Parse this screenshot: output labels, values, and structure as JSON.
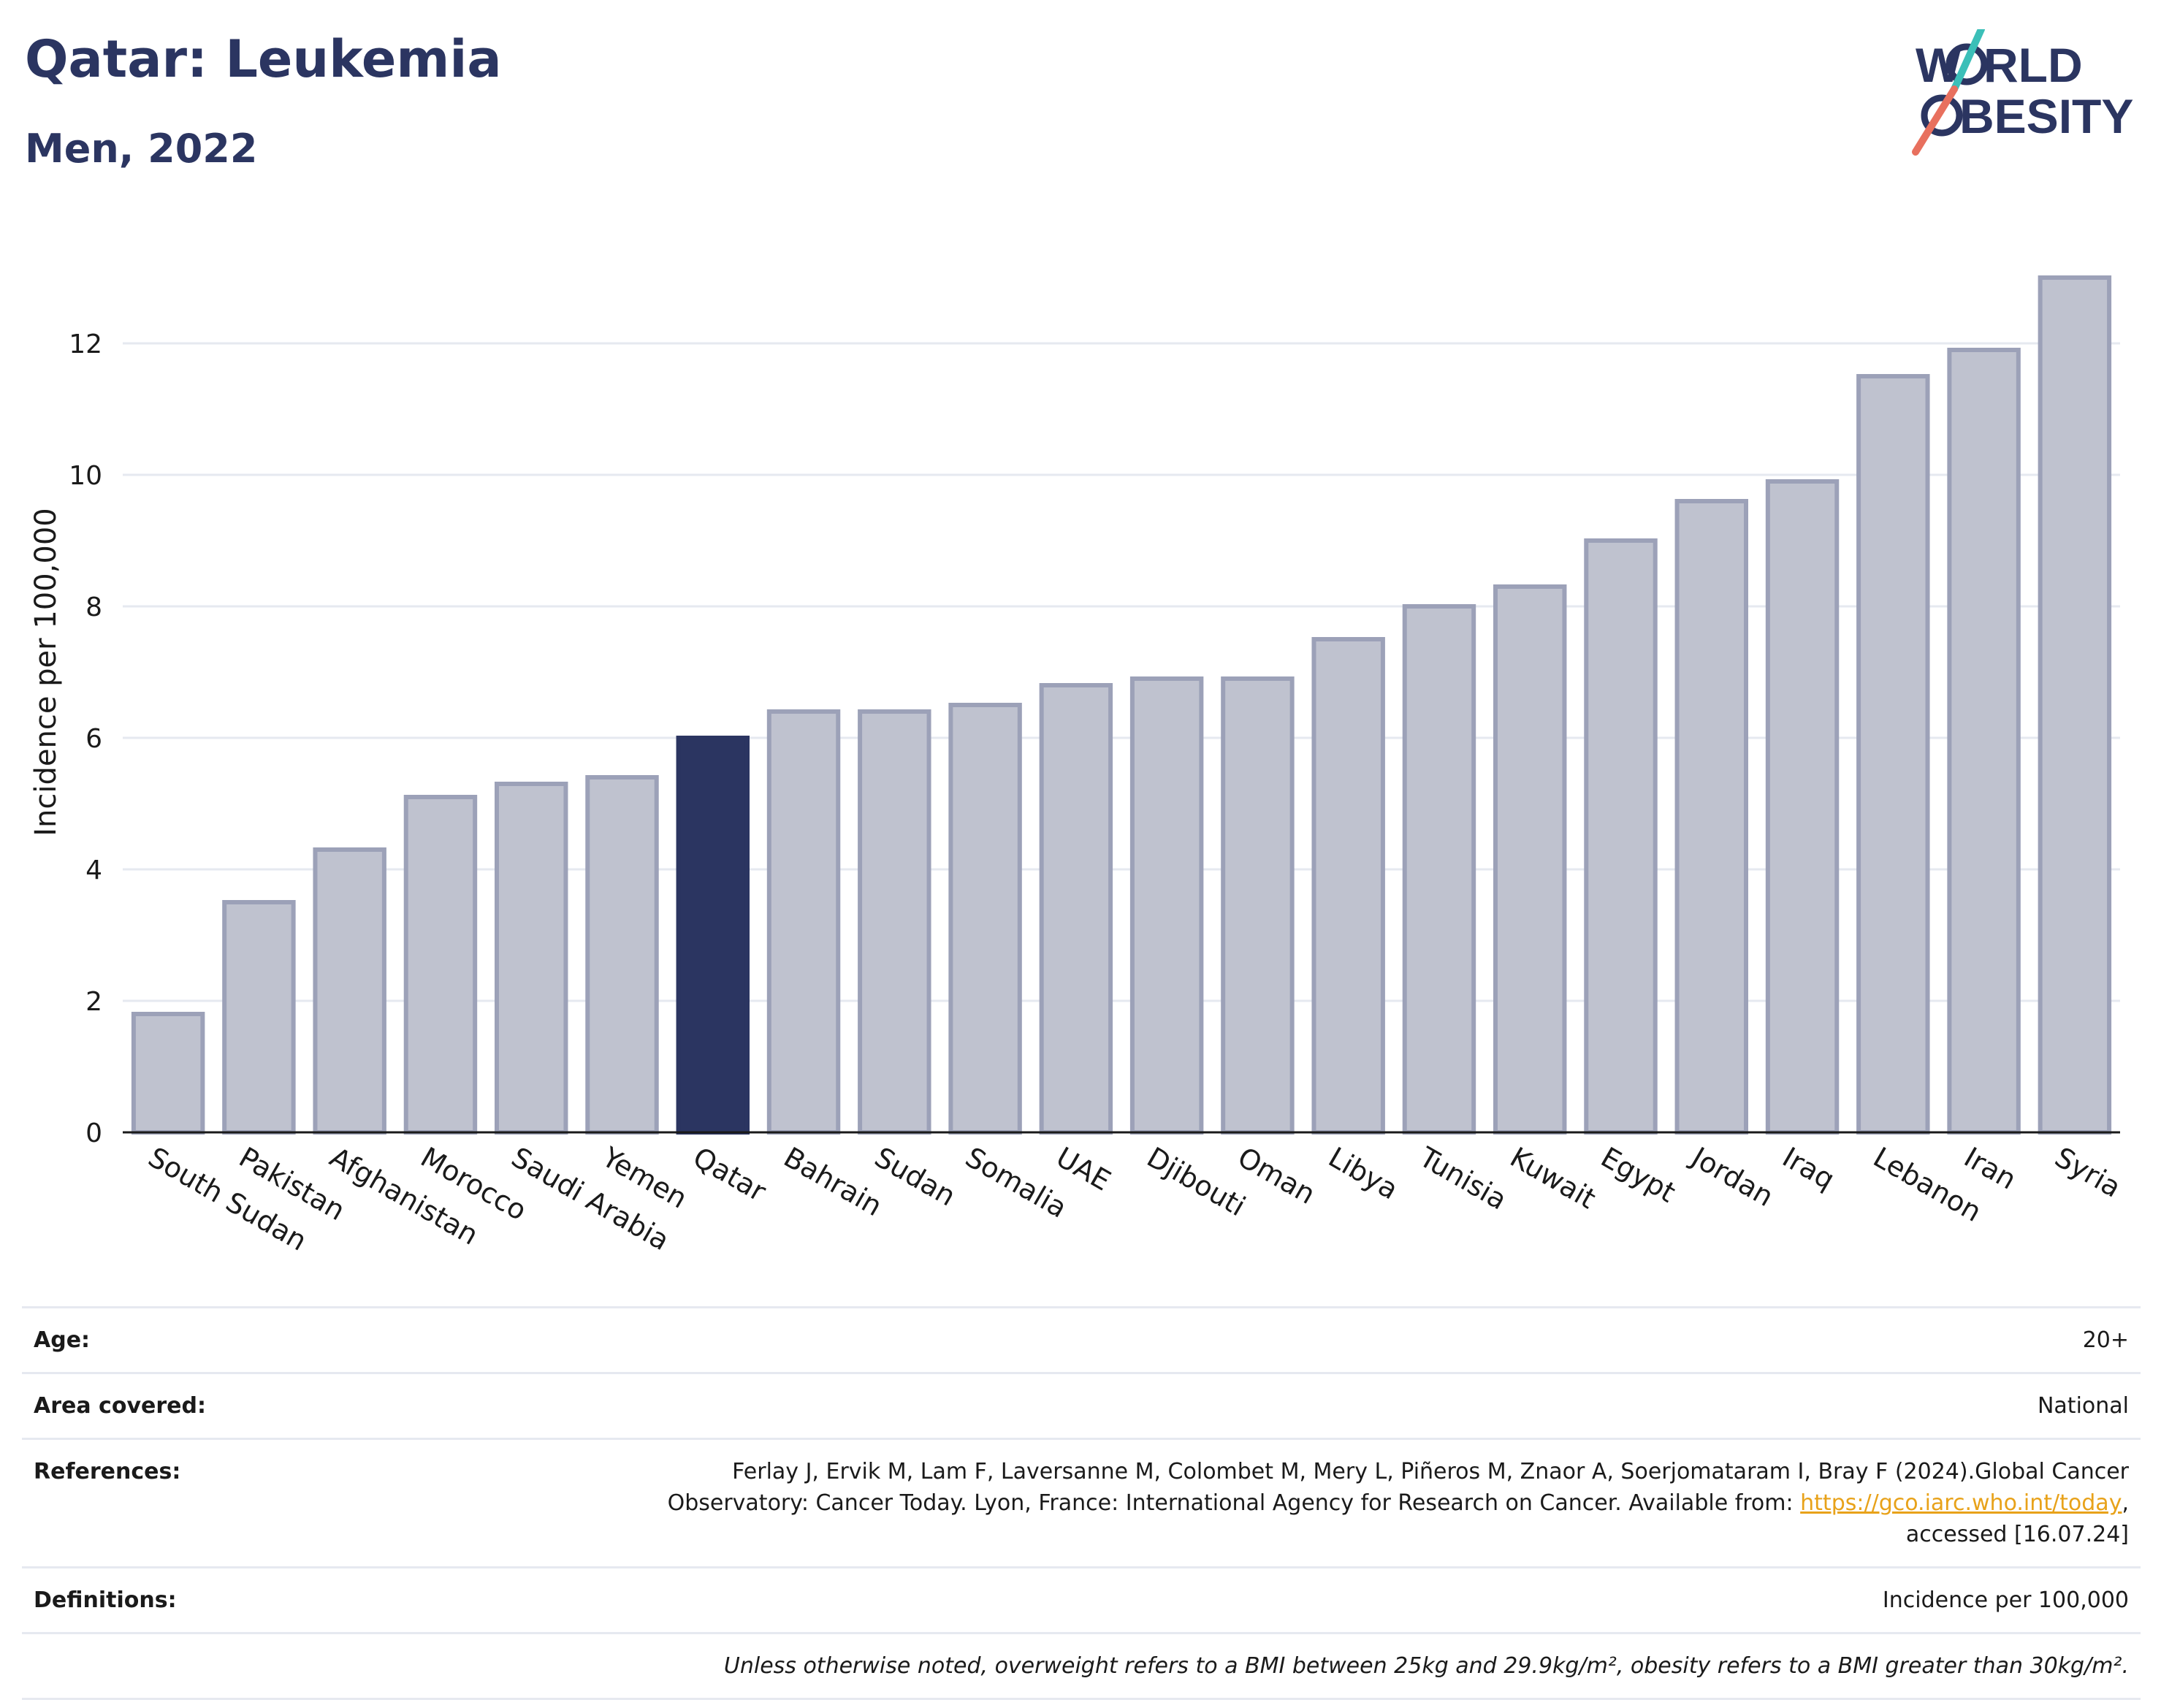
{
  "header": {
    "title": "Qatar: Leukemia",
    "subtitle": "Men, 2022"
  },
  "logo": {
    "line1": "W",
    "line1_rest": "RLD",
    "line2": "BESITY",
    "colors": {
      "text": "#2b3561",
      "slash_top": "#3bbfb8",
      "slash_bottom": "#e8705e"
    }
  },
  "chart_data": {
    "type": "bar",
    "categories": [
      "South Sudan",
      "Pakistan",
      "Afghanistan",
      "Morocco",
      "Saudi Arabia",
      "Yemen",
      "Qatar",
      "Bahrain",
      "Sudan",
      "Somalia",
      "UAE",
      "Djibouti",
      "Oman",
      "Libya",
      "Tunisia",
      "Kuwait",
      "Egypt",
      "Jordan",
      "Iraq",
      "Lebanon",
      "Iran",
      "Syria"
    ],
    "values": [
      1.8,
      3.5,
      4.3,
      5.1,
      5.3,
      5.4,
      6.0,
      6.4,
      6.4,
      6.5,
      6.8,
      6.9,
      6.9,
      7.5,
      8.0,
      8.3,
      9.0,
      9.6,
      9.9,
      11.5,
      11.9,
      13.0
    ],
    "highlight": "Qatar",
    "ylabel": "Incidence per 100,000",
    "xlabel": "",
    "ylim": [
      0,
      14
    ],
    "yticks": [
      0,
      2,
      4,
      6,
      8,
      10,
      12
    ],
    "grid": true,
    "colors": {
      "bar": "#bfc2cf",
      "bar_border": "#9ca1b8",
      "highlight": "#2b3561"
    }
  },
  "info": {
    "age_label": "Age:",
    "age_value": "20+",
    "area_label": "Area covered:",
    "area_value": "National",
    "references_label": "References:",
    "references_text1": "Ferlay J, Ervik M, Lam F, Laversanne M, Colombet M, Mery L, Piñeros M, Znaor A, Soerjomataram I, Bray F (2024).Global Cancer",
    "references_text2": "Observatory: Cancer Today. Lyon, France: International Agency for Research on Cancer. Available from: ",
    "references_link": "https://gco.iarc.who.int/today",
    "references_text3": ",",
    "references_text4": "accessed [16.07.24]",
    "definitions_label": "Definitions:",
    "definitions_value": "Incidence per 100,000",
    "note": "Unless otherwise noted, overweight refers to a BMI between 25kg and 29.9kg/m², obesity refers to a BMI greater than 30kg/m²."
  }
}
